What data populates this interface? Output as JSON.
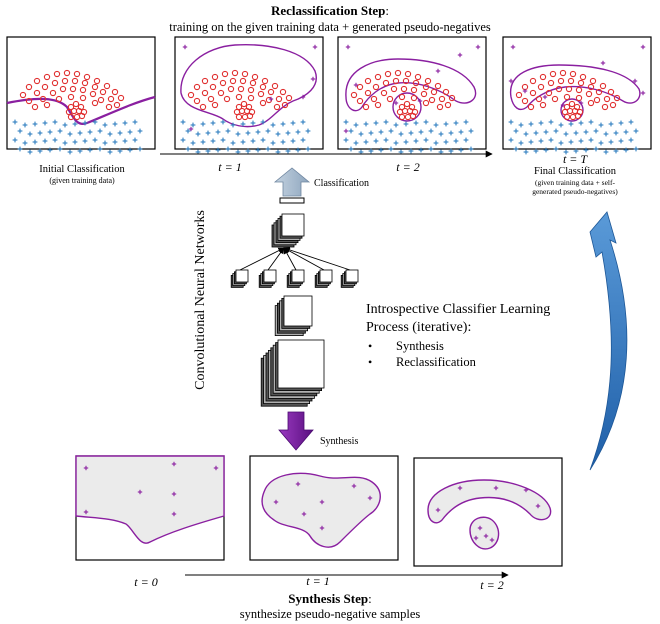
{
  "reclassification": {
    "title": "Reclassification Step",
    "title_colon": ":",
    "subtitle": "training on the given training data + generated pseudo-negatives",
    "panels": [
      {
        "caption": "Initial Classification",
        "subcaption": "(given training data)"
      },
      {
        "time_label": "t = 1"
      },
      {
        "time_label": "t = 2"
      },
      {
        "time_label": "t = T",
        "caption": "Final Classification",
        "subcaption_line1": "(given training data + self-",
        "subcaption_line2": "generated pseudo-negatives)"
      }
    ]
  },
  "cnn": {
    "label": "Convolutional Neural Networks",
    "classification_label": "Classification",
    "synthesis_label": "Synthesis"
  },
  "introspective": {
    "title_line1": "Introspective Classifier Learning",
    "title_line2": "Process (iterative):",
    "bullet_char": "•",
    "bullets": [
      "Synthesis",
      "Reclassification"
    ]
  },
  "synthesis": {
    "title": "Synthesis Step",
    "title_colon": ":",
    "subtitle": "synthesize pseudo-negative samples",
    "time_labels": [
      "t = 0",
      "t = 1",
      "t = 2"
    ]
  },
  "colors": {
    "positive": "#e03030",
    "negative": "#2f7fc0",
    "boundary": "#8a1fa0",
    "pseudo": "#8a1fa0",
    "region_fill": "#ebebeb",
    "arrow_gray": "#9fb3c8",
    "arrow_purple": "#7a1fa0",
    "cycle_arrow": "#3a7fc8"
  }
}
